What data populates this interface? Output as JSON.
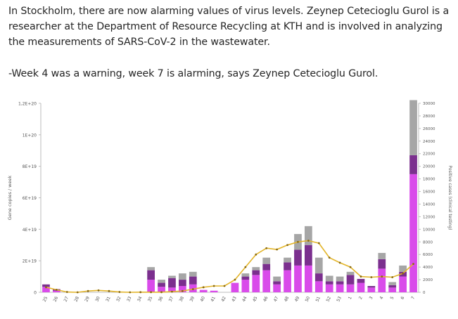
{
  "article": {
    "paragraph1": "In Stockholm, there are now alarming values of virus levels. Zeynep Cetecioglu Gurol is a researcher at the Department of Resource Recycling at KTH and is involved in analyzing the measurements of SARS-CoV-2 in the wastewater.",
    "paragraph2": "-Week 4 was a warning, week 7 is alarming, says Zeynep Cetecioglu Gurol."
  },
  "chart_data": {
    "type": "bar",
    "ylabel": "Gene copies / week",
    "y2label": "Positive cases (clinical testing)",
    "ylim": [
      0,
      1.2e+20
    ],
    "y2lim": [
      0,
      30000
    ],
    "yticks": [
      "0",
      "2E+19",
      "4E+19",
      "6E+19",
      "8E+19",
      "1E+20",
      "1,2E+20"
    ],
    "y2ticks": [
      "0",
      "2000",
      "4000",
      "6000",
      "8000",
      "10000",
      "12000",
      "14000",
      "16000",
      "18000",
      "20000",
      "22000",
      "24000",
      "26000",
      "28000",
      "30000"
    ],
    "categories": [
      "25",
      "26",
      "27",
      "28",
      "29",
      "30",
      "31",
      "32",
      "33",
      "34",
      "35",
      "36",
      "37",
      "38",
      "39",
      "40",
      "41",
      "42",
      "43",
      "44",
      "45",
      "46",
      "47",
      "48",
      "49",
      "50",
      "51",
      "52",
      "53",
      "1",
      "2",
      "3",
      "4",
      "5",
      "6",
      "7"
    ],
    "series_colors": [
      "#d94bea",
      "#7b2f8e",
      "#a6a6a6",
      "#e3b52a"
    ],
    "series": [
      {
        "type": "stacked-bar",
        "values": [
          3.5e+18,
          1e+18,
          0,
          0,
          0,
          0,
          0,
          0,
          0,
          0,
          8e+18,
          3.5e+18,
          3e+18,
          4e+18,
          5e+18,
          1.5e+18,
          1e+18,
          0,
          6e+18,
          8e+18,
          1.1e+19,
          1.4e+19,
          5e+18,
          1.4e+19,
          1.7e+19,
          1.7e+19,
          7e+18,
          5e+18,
          5e+18,
          5e+18,
          6e+18,
          3e+18,
          1.5e+19,
          3e+18,
          1e+19,
          7.5e+19
        ]
      },
      {
        "type": "stacked-bar",
        "values": [
          1.5e+18,
          1e+18,
          0,
          0,
          0,
          0,
          0,
          0,
          0,
          0,
          6e+18,
          2.5e+18,
          6e+18,
          4e+18,
          5e+18,
          0,
          0,
          0,
          0,
          2e+18,
          3e+18,
          4e+18,
          2e+18,
          5e+18,
          1e+19,
          1.3e+19,
          5e+18,
          2e+18,
          2e+18,
          6e+18,
          2.5e+18,
          1e+18,
          6e+18,
          1.5e+18,
          3e+18,
          1.2e+19
        ]
      },
      {
        "type": "stacked-bar",
        "values": [
          0,
          0,
          0,
          0,
          0,
          0,
          0,
          0,
          0,
          0,
          2e+18,
          2e+18,
          1.5e+18,
          4e+18,
          3e+18,
          0,
          0,
          0,
          0,
          2e+18,
          2e+18,
          4e+18,
          3e+18,
          3e+18,
          1e+19,
          1.2e+19,
          1e+19,
          3.5e+18,
          3e+18,
          2e+18,
          0,
          0,
          4e+18,
          2e+18,
          4e+18,
          3.5e+19
        ]
      },
      {
        "type": "line",
        "axis": "y2",
        "values": [
          800,
          400,
          50,
          0,
          200,
          300,
          200,
          50,
          0,
          20,
          20,
          20,
          100,
          200,
          500,
          800,
          1000,
          1000,
          2000,
          4000,
          6000,
          7000,
          6800,
          7500,
          8000,
          8200,
          7800,
          5500,
          4700,
          4000,
          2500,
          2400,
          2500,
          2400,
          3000,
          4500
        ]
      }
    ]
  }
}
